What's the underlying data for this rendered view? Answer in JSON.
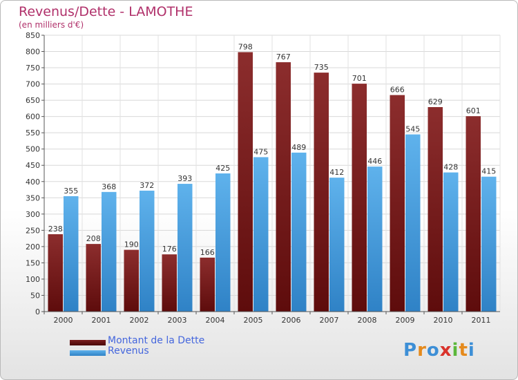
{
  "title": "Revenus/Dette - LAMOTHE",
  "subtitle": "(en milliers d'€)",
  "colors": {
    "dette_top": "#8c2d2d",
    "dette_bottom": "#5e0c0c",
    "revenus_top": "#5fb2ec",
    "revenus_bottom": "#2f82c6",
    "title": "#b0306a",
    "legend_text": "#4466dd"
  },
  "chart_data": {
    "type": "bar",
    "categories": [
      "2000",
      "2001",
      "2002",
      "2003",
      "2004",
      "2005",
      "2006",
      "2007",
      "2008",
      "2009",
      "2010",
      "2011"
    ],
    "series": [
      {
        "name": "Montant de la Dette",
        "values": [
          238,
          208,
          190,
          176,
          166,
          798,
          767,
          735,
          701,
          666,
          629,
          601
        ]
      },
      {
        "name": "Revenus",
        "values": [
          355,
          368,
          372,
          393,
          425,
          475,
          489,
          412,
          446,
          545,
          428,
          415
        ]
      }
    ],
    "ylim": [
      0,
      850
    ],
    "yticks": [
      0,
      50,
      100,
      150,
      200,
      250,
      300,
      350,
      400,
      450,
      500,
      550,
      600,
      650,
      700,
      750,
      800,
      850
    ],
    "grid": true,
    "legend": "bottom-left"
  },
  "logo": {
    "letters": [
      "P",
      "r",
      "o",
      "x",
      "i",
      "t",
      "i"
    ],
    "colors": [
      "#3d8fd6",
      "#e58a1c",
      "#3d8fd6",
      "#d9322b",
      "#5bb73b",
      "#e58a1c",
      "#3d8fd6"
    ]
  }
}
